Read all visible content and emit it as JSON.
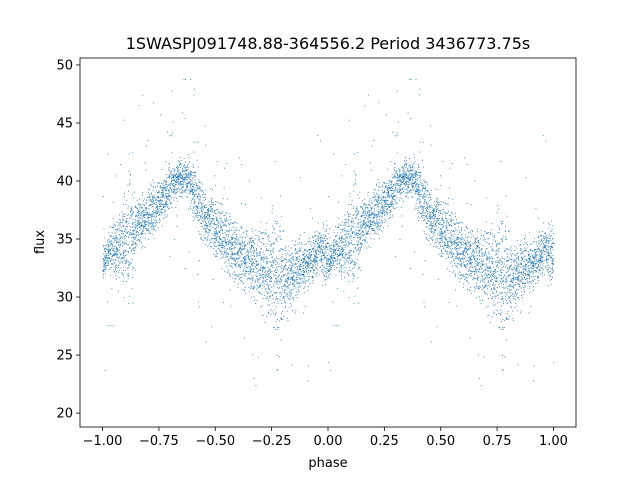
{
  "chart_data": {
    "type": "scatter",
    "title": "1SWASPJ091748.88-364556.2 Period 3436773.75s",
    "xlabel": "phase",
    "ylabel": "flux",
    "xlim": [
      -1.1,
      1.1
    ],
    "ylim": [
      18.8,
      50.6
    ],
    "xticks": [
      -1.0,
      -0.75,
      -0.5,
      -0.25,
      0.0,
      0.25,
      0.5,
      0.75,
      1.0
    ],
    "xtick_labels": [
      "−1.00",
      "−0.75",
      "−0.50",
      "−0.25",
      "0.00",
      "0.25",
      "0.50",
      "0.75",
      "1.00"
    ],
    "yticks": [
      20,
      25,
      30,
      35,
      40,
      45,
      50
    ],
    "ytick_labels": [
      "20",
      "25",
      "30",
      "35",
      "40",
      "45",
      "50"
    ],
    "grid": false,
    "color": "#1f77b4",
    "series": [
      {
        "x": [
          0.0,
          0.02,
          0.04,
          0.06,
          0.08,
          0.1,
          0.12,
          0.14,
          0.16,
          0.18,
          0.2,
          0.22,
          0.24,
          0.26,
          0.28,
          0.3,
          0.32,
          0.34,
          0.36,
          0.38,
          0.4,
          0.42,
          0.44,
          0.46,
          0.48,
          0.5,
          0.52,
          0.54,
          0.56,
          0.58,
          0.6,
          0.62,
          0.64,
          0.66,
          0.68,
          0.7,
          0.72,
          0.74,
          0.76,
          0.78,
          0.8,
          0.82,
          0.84,
          0.86,
          0.88,
          0.9,
          0.92,
          0.94,
          0.96,
          0.98,
          1.0
        ],
        "values": [
          33.0,
          33.8,
          34.2,
          34.5,
          34.8,
          35.0,
          35.5,
          36.0,
          36.5,
          36.8,
          37.0,
          37.5,
          38.0,
          38.5,
          39.0,
          39.5,
          40.0,
          40.2,
          40.3,
          40.0,
          39.5,
          38.5,
          37.5,
          37.0,
          36.5,
          36.0,
          35.5,
          35.0,
          34.5,
          34.0,
          33.8,
          33.5,
          33.3,
          33.0,
          32.8,
          32.5,
          32.3,
          32.0,
          31.8,
          31.5,
          31.3,
          31.5,
          32.0,
          32.5,
          32.8,
          33.0,
          33.2,
          33.5,
          34.0,
          34.0,
          33.5
        ],
        "spread": [
          1.2,
          1.0,
          1.5,
          2.0,
          2.2,
          3.0,
          4.0,
          2.0,
          1.5,
          1.5,
          1.8,
          1.8,
          1.5,
          1.5,
          1.5,
          1.5,
          1.2,
          1.2,
          1.2,
          1.5,
          1.8,
          2.0,
          2.0,
          1.8,
          1.8,
          1.8,
          2.0,
          2.0,
          2.2,
          2.0,
          2.0,
          2.0,
          2.0,
          2.2,
          2.5,
          2.5,
          3.0,
          3.0,
          3.5,
          4.0,
          3.0,
          2.5,
          2.0,
          2.0,
          1.8,
          1.5,
          1.5,
          1.5,
          1.8,
          2.0,
          2.0
        ]
      }
    ]
  }
}
